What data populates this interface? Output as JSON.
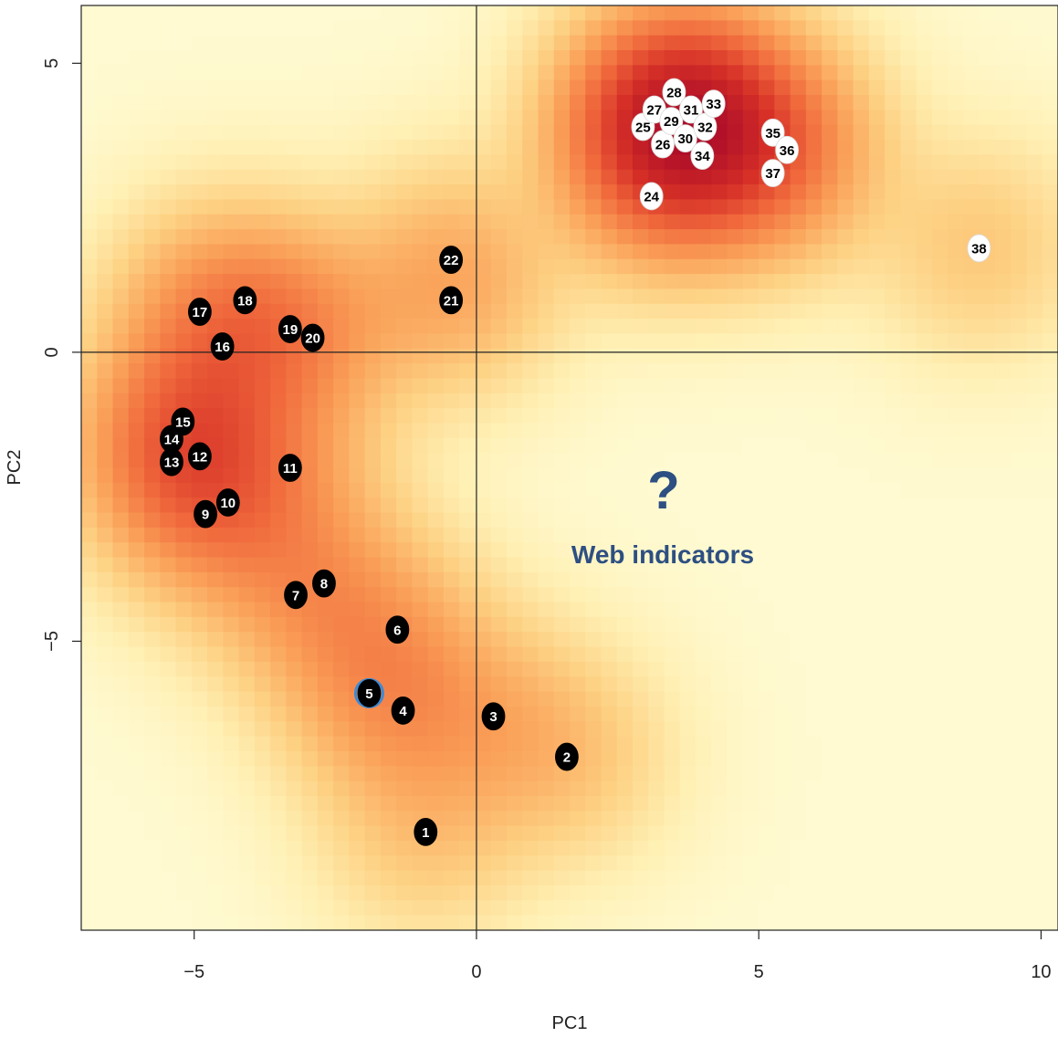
{
  "chart_data": {
    "type": "scatter",
    "title": "",
    "xlabel": "PC1",
    "ylabel": "PC2",
    "xlim": [
      -7,
      10.3
    ],
    "ylim": [
      -10,
      6
    ],
    "x_ticks": [
      {
        "value": -5,
        "label": "−5"
      },
      {
        "value": 0,
        "label": "0"
      },
      {
        "value": 5,
        "label": "5"
      },
      {
        "value": 10,
        "label": "10"
      }
    ],
    "y_ticks": [
      {
        "value": 5,
        "label": "5"
      },
      {
        "value": 0,
        "label": "0"
      },
      {
        "value": -5,
        "label": "−5"
      }
    ],
    "reference_lines": {
      "x": 0,
      "y": 0
    },
    "background": "density heatmap",
    "colors": {
      "density_low": "#fff8c8",
      "density_mid": "#f0703a",
      "density_high": "#b4122a",
      "group_a_fill": "#000000",
      "group_a_text": "#ffffff",
      "group_b_fill": "#ffffff",
      "group_b_text": "#000000",
      "highlight_ring": "#3b8ad6",
      "annotation": "#2d4f82"
    },
    "points": [
      {
        "label": "1",
        "x": -0.9,
        "y": -8.3,
        "group": "dark"
      },
      {
        "label": "2",
        "x": 1.6,
        "y": -7.0,
        "group": "dark"
      },
      {
        "label": "3",
        "x": 0.3,
        "y": -6.3,
        "group": "dark"
      },
      {
        "label": "4",
        "x": -1.3,
        "y": -6.2,
        "group": "dark"
      },
      {
        "label": "5",
        "x": -1.9,
        "y": -5.9,
        "group": "dark",
        "highlight": true
      },
      {
        "label": "6",
        "x": -1.4,
        "y": -4.8,
        "group": "dark"
      },
      {
        "label": "7",
        "x": -3.2,
        "y": -4.2,
        "group": "dark"
      },
      {
        "label": "8",
        "x": -2.7,
        "y": -4.0,
        "group": "dark"
      },
      {
        "label": "9",
        "x": -4.8,
        "y": -2.8,
        "group": "dark"
      },
      {
        "label": "10",
        "x": -4.4,
        "y": -2.6,
        "group": "dark"
      },
      {
        "label": "11",
        "x": -3.3,
        "y": -2.0,
        "group": "dark"
      },
      {
        "label": "12",
        "x": -4.9,
        "y": -1.8,
        "group": "dark"
      },
      {
        "label": "13",
        "x": -5.4,
        "y": -1.9,
        "group": "dark"
      },
      {
        "label": "14",
        "x": -5.4,
        "y": -1.5,
        "group": "dark"
      },
      {
        "label": "15",
        "x": -5.2,
        "y": -1.2,
        "group": "dark"
      },
      {
        "label": "16",
        "x": -4.5,
        "y": 0.1,
        "group": "dark"
      },
      {
        "label": "17",
        "x": -4.9,
        "y": 0.7,
        "group": "dark"
      },
      {
        "label": "18",
        "x": -4.1,
        "y": 0.9,
        "group": "dark"
      },
      {
        "label": "19",
        "x": -3.3,
        "y": 0.4,
        "group": "dark"
      },
      {
        "label": "20",
        "x": -2.9,
        "y": 0.25,
        "group": "dark"
      },
      {
        "label": "21",
        "x": -0.45,
        "y": 0.9,
        "group": "dark"
      },
      {
        "label": "22",
        "x": -0.45,
        "y": 1.6,
        "group": "dark"
      },
      {
        "label": "24",
        "x": 3.1,
        "y": 2.7,
        "group": "light"
      },
      {
        "label": "25",
        "x": 2.95,
        "y": 3.9,
        "group": "light"
      },
      {
        "label": "26",
        "x": 3.3,
        "y": 3.6,
        "group": "light"
      },
      {
        "label": "27",
        "x": 3.15,
        "y": 4.2,
        "group": "light"
      },
      {
        "label": "28",
        "x": 3.5,
        "y": 4.5,
        "group": "light"
      },
      {
        "label": "29",
        "x": 3.45,
        "y": 4.0,
        "group": "light"
      },
      {
        "label": "30",
        "x": 3.7,
        "y": 3.7,
        "group": "light"
      },
      {
        "label": "31",
        "x": 3.8,
        "y": 4.2,
        "group": "light"
      },
      {
        "label": "32",
        "x": 4.05,
        "y": 3.9,
        "group": "light"
      },
      {
        "label": "33",
        "x": 4.2,
        "y": 4.3,
        "group": "light"
      },
      {
        "label": "34",
        "x": 4.0,
        "y": 3.4,
        "group": "light"
      },
      {
        "label": "35",
        "x": 5.25,
        "y": 3.8,
        "group": "light"
      },
      {
        "label": "36",
        "x": 5.5,
        "y": 3.5,
        "group": "light"
      },
      {
        "label": "37",
        "x": 5.25,
        "y": 3.1,
        "group": "light"
      },
      {
        "label": "38",
        "x": 8.9,
        "y": 1.8,
        "group": "light"
      }
    ],
    "annotation": {
      "mark": "?",
      "text": "Web indicators"
    }
  }
}
